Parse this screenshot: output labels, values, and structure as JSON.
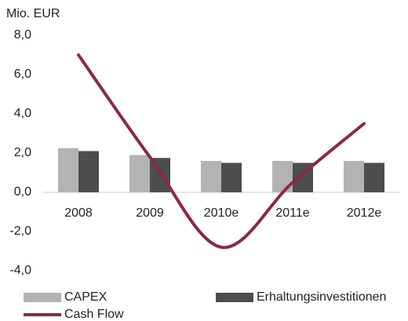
{
  "chart_data": {
    "type": "bar",
    "y_label": "Mio. EUR",
    "categories": [
      "2008",
      "2009",
      "2010e",
      "2011e",
      "2012e"
    ],
    "series": [
      {
        "name": "CAPEX",
        "color": "#b3b3b3",
        "values": [
          2.25,
          1.9,
          1.6,
          1.6,
          1.6
        ]
      },
      {
        "name": "Erhaltungsinvestitionen",
        "color": "#4d4d4d",
        "values": [
          2.1,
          1.75,
          1.5,
          1.5,
          1.5
        ]
      },
      {
        "name": "Cash Flow",
        "type": "line",
        "color": "#8b2942",
        "values": [
          7.0,
          1.8,
          -2.8,
          0.5,
          3.5
        ]
      }
    ],
    "ylim": [
      -4,
      8
    ],
    "yticks": [
      {
        "value": -4,
        "label": "-4,0"
      },
      {
        "value": -2,
        "label": "-2,0"
      },
      {
        "value": 0,
        "label": "0,0"
      },
      {
        "value": 2,
        "label": "2,0"
      },
      {
        "value": 4,
        "label": "4,0"
      },
      {
        "value": 6,
        "label": "6,0"
      },
      {
        "value": 8,
        "label": "8,0"
      }
    ],
    "legend": "bottom"
  }
}
